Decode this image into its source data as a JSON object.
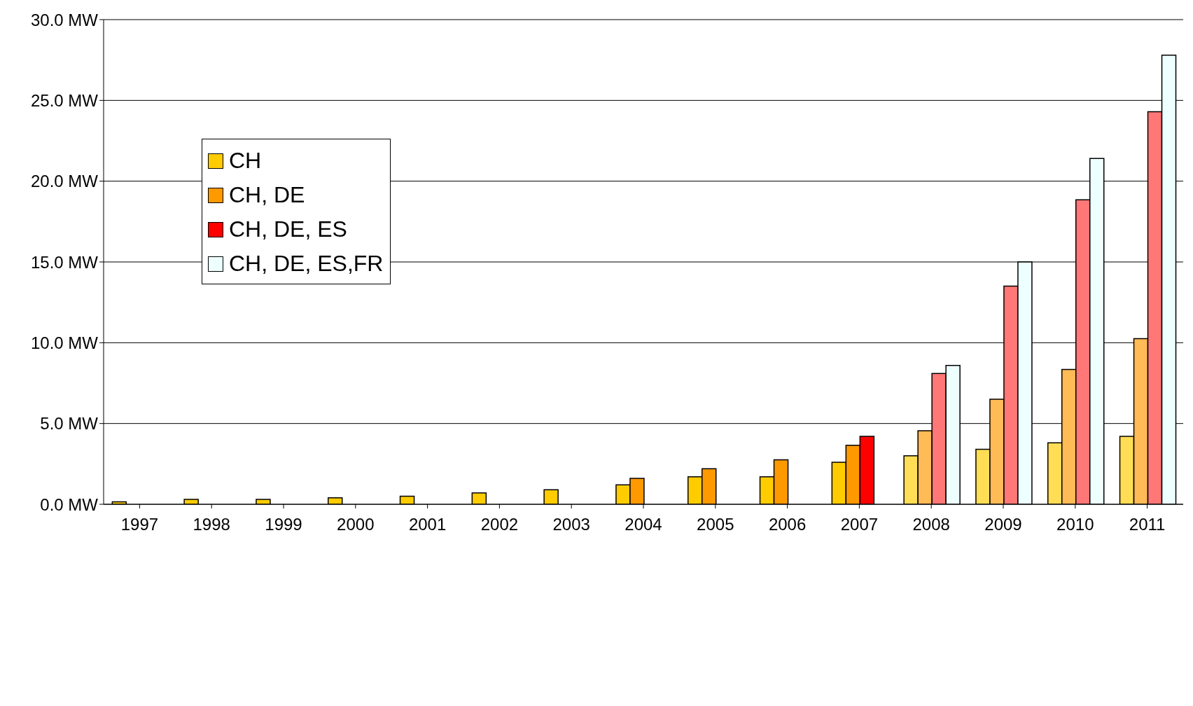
{
  "chart_data": {
    "type": "bar",
    "categories": [
      "1997",
      "1998",
      "1999",
      "2000",
      "2001",
      "2002",
      "2003",
      "2004",
      "2005",
      "2006",
      "2007",
      "2008",
      "2009",
      "2010",
      "2011"
    ],
    "series": [
      {
        "name": "CH",
        "color": "#ffcc00",
        "colors": [
          "#ffcc00",
          "#ffcc00",
          "#ffcc00",
          "#ffcc00",
          "#ffcc00",
          "#ffcc00",
          "#ffcc00",
          "#ffcc00",
          "#ffcc00",
          "#ffcc00",
          "#ffcc00",
          "#ffdd55",
          "#ffdd55",
          "#ffdd55",
          "#ffdd55"
        ],
        "values": [
          0.15,
          0.3,
          0.3,
          0.4,
          0.5,
          0.7,
          0.9,
          1.2,
          1.7,
          1.7,
          2.6,
          3.0,
          3.4,
          3.8,
          4.2
        ]
      },
      {
        "name": "CH, DE",
        "color": "#ff9900",
        "colors": [
          null,
          null,
          null,
          null,
          null,
          null,
          null,
          "#ff9900",
          "#ff9900",
          "#ff9900",
          "#ff9900",
          "#ffbb55",
          "#ffbb55",
          "#ffbb55",
          "#ffbb55"
        ],
        "values": [
          null,
          null,
          null,
          null,
          null,
          null,
          null,
          1.6,
          2.2,
          2.75,
          3.65,
          4.55,
          6.5,
          8.35,
          10.25
        ]
      },
      {
        "name": "CH, DE, ES",
        "color": "#ff0000",
        "colors": [
          null,
          null,
          null,
          null,
          null,
          null,
          null,
          null,
          null,
          null,
          "#ff0000",
          "#ff7777",
          "#ff7777",
          "#ff7777",
          "#ff7777"
        ],
        "values": [
          null,
          null,
          null,
          null,
          null,
          null,
          null,
          null,
          null,
          null,
          4.2,
          8.1,
          13.5,
          18.85,
          24.3
        ]
      },
      {
        "name": "CH, DE, ES,FR",
        "color": "#eeffff",
        "values": [
          null,
          null,
          null,
          null,
          null,
          null,
          null,
          null,
          null,
          null,
          null,
          8.6,
          15.0,
          21.4,
          27.8
        ]
      }
    ],
    "ylim": [
      0,
      30
    ],
    "yticks": [
      {
        "value": 0,
        "label": "0.0 MW"
      },
      {
        "value": 5,
        "label": "5.0 MW"
      },
      {
        "value": 10,
        "label": "10.0 MW"
      },
      {
        "value": 15,
        "label": "15.0 MW"
      },
      {
        "value": 20,
        "label": "20.0 MW"
      },
      {
        "value": 25,
        "label": "25.0 MW"
      },
      {
        "value": 30,
        "label": "30.0 MW"
      }
    ],
    "grid": "y",
    "legend": "top left"
  }
}
